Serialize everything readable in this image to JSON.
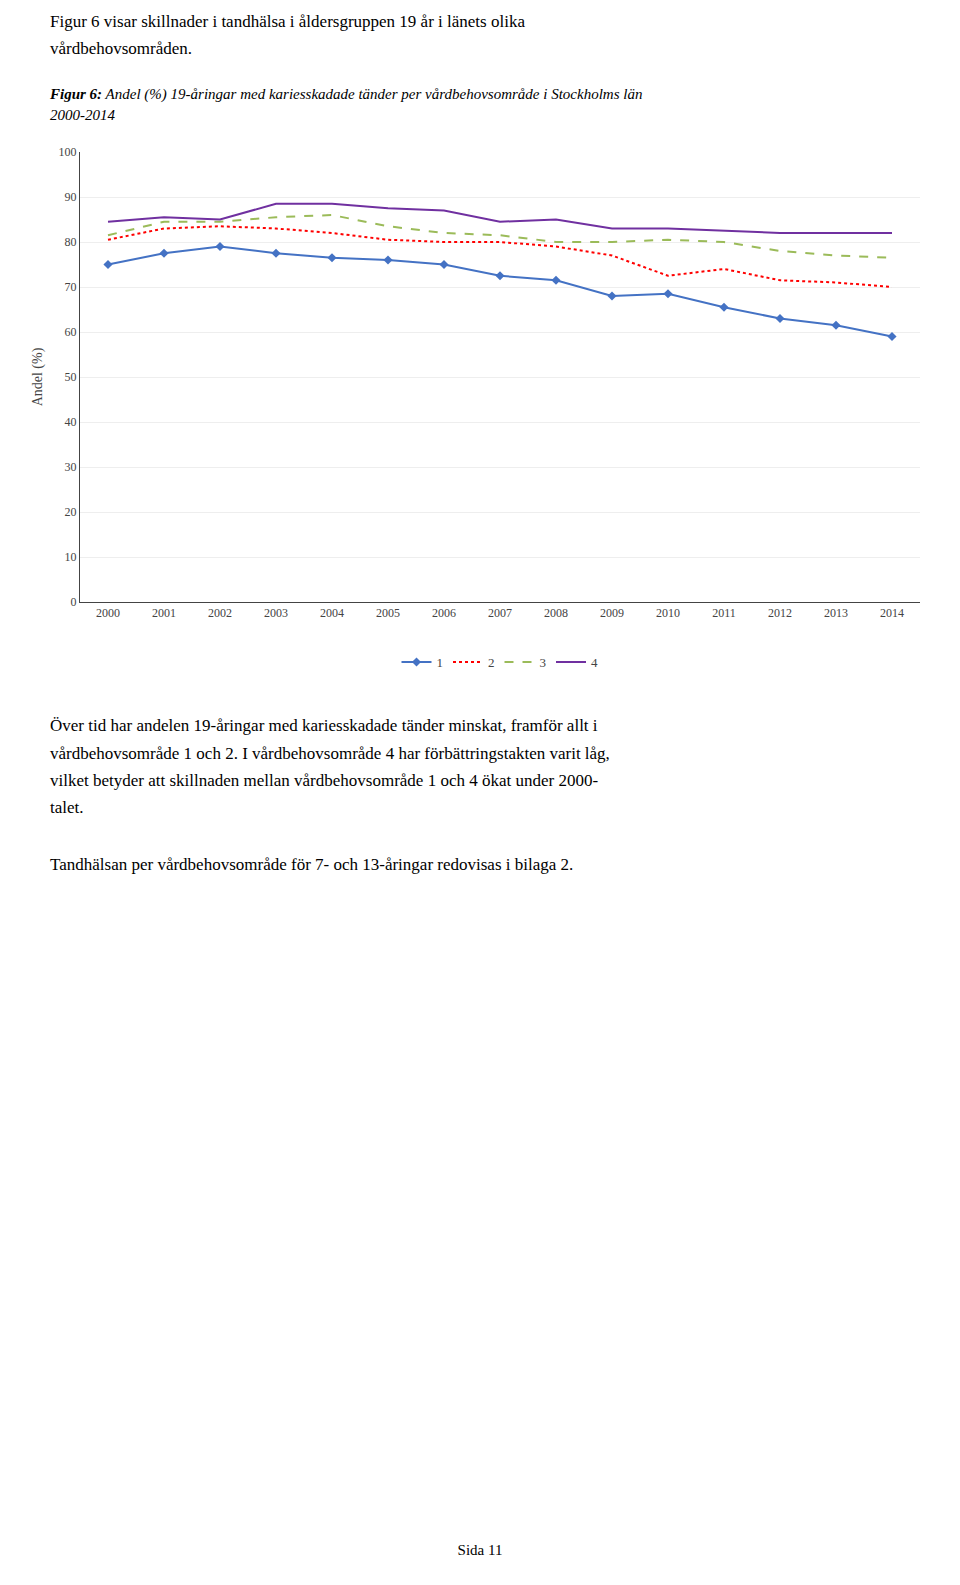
{
  "chart_data": {
    "type": "line",
    "title": "Figur 6: Andel (%) 19-åringar med kariesskadade tänder per vårdbehovsområde i Stockholms län\n2000-2014",
    "x": [
      2000,
      2001,
      2002,
      2003,
      2004,
      2005,
      2006,
      2007,
      2008,
      2009,
      2010,
      2011,
      2012,
      2013,
      2014
    ],
    "series": [
      {
        "name": "1",
        "color": "#4472C4",
        "marker": "diamond",
        "line_style": "solid",
        "values": [
          75,
          77.5,
          79,
          77.5,
          76.5,
          76,
          75,
          72.5,
          71.5,
          68,
          68.5,
          65.5,
          63,
          61.5,
          59
        ]
      },
      {
        "name": "2",
        "color": "#FF0000",
        "line_style": "dotted",
        "values": [
          80.5,
          83,
          83.5,
          83,
          82,
          80.5,
          80,
          80,
          79,
          77,
          72.5,
          74,
          71.5,
          71,
          70
        ]
      },
      {
        "name": "3",
        "color": "#9BBB59",
        "line_style": "dashed",
        "values": [
          81.5,
          84.5,
          84.5,
          85.5,
          86,
          83.5,
          82,
          81.5,
          80,
          80,
          80.5,
          80,
          78,
          77,
          76.5
        ]
      },
      {
        "name": "4",
        "color": "#7030A0",
        "line_style": "solid",
        "values": [
          84.5,
          85.5,
          85,
          88.5,
          88.5,
          87.5,
          87,
          84.5,
          85,
          83,
          83,
          82.5,
          82,
          82,
          82
        ]
      }
    ],
    "xlim": [
      1999.5,
      2014.5
    ],
    "xticks": [
      2000,
      2001,
      2002,
      2003,
      2004,
      2005,
      2006,
      2007,
      2008,
      2009,
      2010,
      2011,
      2012,
      2013,
      2014
    ],
    "ylim": [
      0,
      100
    ],
    "yticks": [
      0,
      10,
      20,
      30,
      40,
      50,
      60,
      70,
      80,
      90,
      100
    ],
    "ylabel": "Andel (%)",
    "grid": true,
    "legend": "bottom",
    "annotations": [
      "Figur 6 visar skillnader i tandhälsa i åldersgruppen 19 år i länets olika\nvårdbehovsområden.",
      "Över tid har andelen 19-åringar med kariesskadade tänder minskat, framför allt i\nvårdbehovsområde 1 och 2. I vårdbehovsområde 4 har förbättringstakten varit låg,\nvilket betyder att skillnaden mellan vårdbehovsområde 1 och 4 ökat under 2000-\ntalet.",
      "Tandhälsan per vårdbehovsområde för 7- och 13-åringar redovisas i bilaga 2.",
      "Sida 11"
    ]
  }
}
